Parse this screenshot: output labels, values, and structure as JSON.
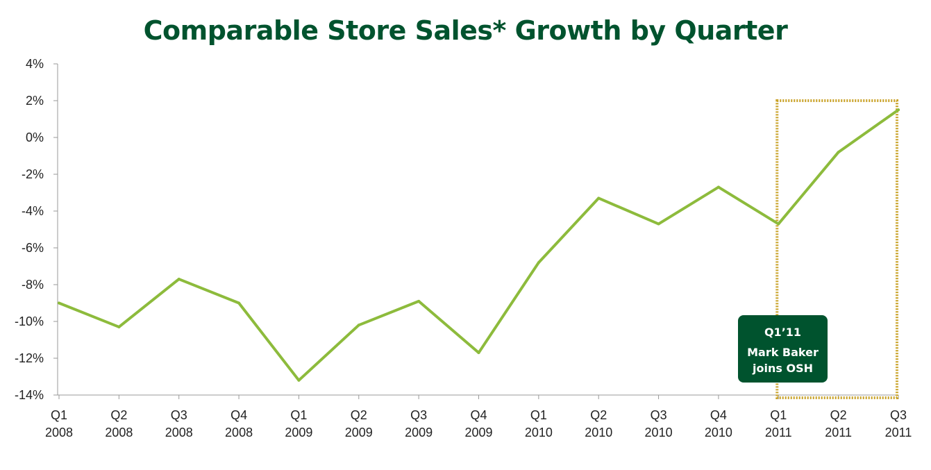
{
  "chart_data": {
    "type": "line",
    "title": "Comparable Store Sales* Growth by Quarter",
    "xlabel": "",
    "ylabel": "",
    "ylim": [
      -14,
      4
    ],
    "yticks": [
      "4%",
      "2%",
      "0%",
      "-2%",
      "-4%",
      "-6%",
      "-8%",
      "-10%",
      "-12%",
      "-14%"
    ],
    "ytick_values": [
      4,
      2,
      0,
      -2,
      -4,
      -6,
      -8,
      -10,
      -12,
      -14
    ],
    "categories": [
      {
        "q": "Q1",
        "y": "2008"
      },
      {
        "q": "Q2",
        "y": "2008"
      },
      {
        "q": "Q3",
        "y": "2008"
      },
      {
        "q": "Q4",
        "y": "2008"
      },
      {
        "q": "Q1",
        "y": "2009"
      },
      {
        "q": "Q2",
        "y": "2009"
      },
      {
        "q": "Q3",
        "y": "2009"
      },
      {
        "q": "Q4",
        "y": "2009"
      },
      {
        "q": "Q1",
        "y": "2010"
      },
      {
        "q": "Q2",
        "y": "2010"
      },
      {
        "q": "Q3",
        "y": "2010"
      },
      {
        "q": "Q4",
        "y": "2010"
      },
      {
        "q": "Q1",
        "y": "2011"
      },
      {
        "q": "Q2",
        "y": "2011"
      },
      {
        "q": "Q3",
        "y": "2011"
      }
    ],
    "series": [
      {
        "values": [
          -9.0,
          -10.3,
          -7.7,
          -9.0,
          -13.2,
          -10.2,
          -8.9,
          -11.7,
          -6.8,
          -3.3,
          -4.7,
          -2.7,
          -4.7,
          -0.8,
          1.5
        ]
      }
    ],
    "grid": false,
    "legend": "none",
    "highlight": {
      "from_index": 12,
      "to_index": 14,
      "range": [
        -14,
        2
      ]
    },
    "annotation": {
      "lines": [
        "Q1’11",
        "Mark Baker",
        "joins OSH"
      ]
    },
    "colors": {
      "title": "#00532e",
      "line": "#8dbb3c",
      "highlight_border": "#c9a227",
      "annotation_bg": "#00532e",
      "annotation_text": "#ffffff",
      "axis": "#999999"
    }
  }
}
